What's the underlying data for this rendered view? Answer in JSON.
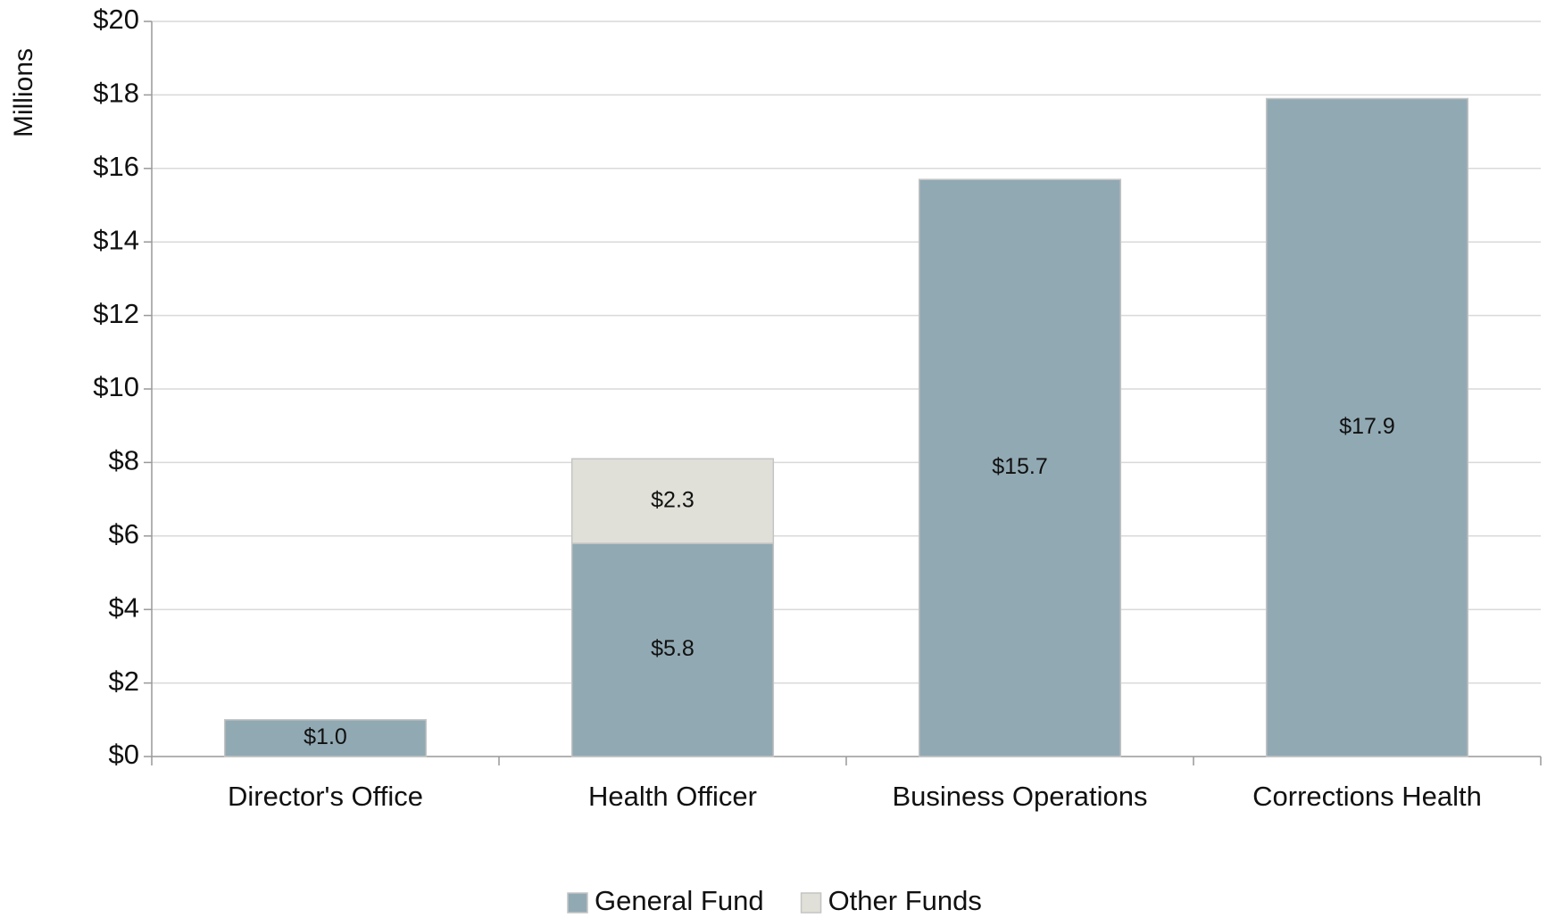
{
  "chart_data": {
    "type": "stacked_bar",
    "y_axis_label": "Millions",
    "categories": [
      "Director's Office",
      "Health Officer",
      "Business Operations",
      "Corrections Health"
    ],
    "series": [
      {
        "name": "General Fund",
        "color": "#91a9b3",
        "values": [
          1.0,
          5.8,
          15.7,
          17.9
        ],
        "value_labels": [
          "$1.0",
          "$5.8",
          "$15.7",
          "$17.9"
        ]
      },
      {
        "name": "Other Funds",
        "color": "#e0e0d8",
        "values": [
          null,
          2.3,
          null,
          null
        ],
        "value_labels": [
          null,
          "$2.3",
          null,
          null
        ]
      }
    ],
    "ylim": [
      0,
      20
    ],
    "yticks": [
      {
        "value": 0,
        "label": "$0"
      },
      {
        "value": 2,
        "label": "$2"
      },
      {
        "value": 4,
        "label": "$4"
      },
      {
        "value": 6,
        "label": "$6"
      },
      {
        "value": 8,
        "label": "$8"
      },
      {
        "value": 10,
        "label": "$10"
      },
      {
        "value": 12,
        "label": "$12"
      },
      {
        "value": 14,
        "label": "$14"
      },
      {
        "value": 16,
        "label": "$16"
      },
      {
        "value": 18,
        "label": "$18"
      },
      {
        "value": 20,
        "label": "$20"
      }
    ],
    "grid": true,
    "legend": "bottom"
  }
}
